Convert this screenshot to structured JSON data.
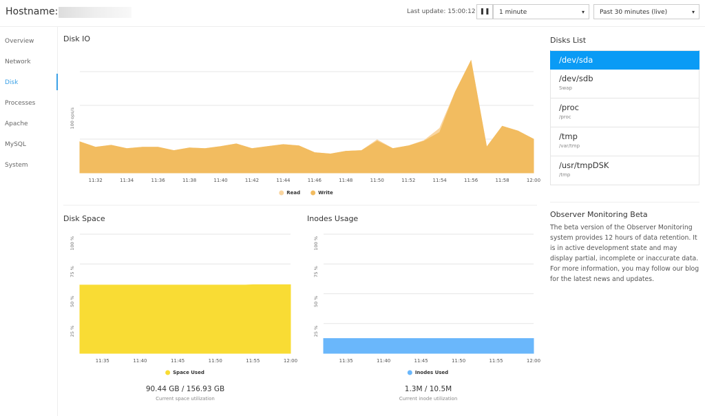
{
  "header": {
    "hostname_label": "Hostname:",
    "last_update": "Last update: 15:00:12",
    "interval": "1 minute",
    "range": "Past 30 minutes (live)"
  },
  "sidebar": {
    "items": [
      "Overview",
      "Network",
      "Disk",
      "Processes",
      "Apache",
      "MySQL",
      "System"
    ],
    "active": 2
  },
  "chart_data": [
    {
      "type": "area",
      "title": "Disk IO",
      "x": [
        "11:31",
        "11:32",
        "11:33",
        "11:34",
        "11:35",
        "11:36",
        "11:37",
        "11:38",
        "11:39",
        "11:40",
        "11:41",
        "11:42",
        "11:43",
        "11:44",
        "11:45",
        "11:46",
        "11:47",
        "11:48",
        "11:49",
        "11:50",
        "11:51",
        "11:52",
        "11:53",
        "11:54",
        "11:55",
        "11:56",
        "11:57",
        "11:58",
        "11:59",
        "12:00"
      ],
      "series": [
        {
          "name": "Read",
          "color": "#f9d5a0",
          "values": [
            46,
            38,
            41,
            36,
            38,
            38,
            33,
            37,
            36,
            39,
            43,
            36,
            39,
            42,
            40,
            30,
            28,
            32,
            33,
            49,
            36,
            40,
            48,
            66,
            120,
            166,
            38,
            69,
            62,
            50
          ]
        },
        {
          "name": "Write",
          "color": "#f2bc60",
          "values": [
            46,
            38,
            41,
            36,
            38,
            38,
            33,
            37,
            36,
            39,
            43,
            36,
            39,
            42,
            40,
            30,
            28,
            32,
            33,
            47,
            36,
            40,
            47,
            60,
            120,
            166,
            38,
            69,
            62,
            50
          ]
        }
      ],
      "xlim": [
        "11:31",
        "12:00"
      ],
      "xticks": [
        "11:32",
        "11:34",
        "11:36",
        "11:38",
        "11:40",
        "11:42",
        "11:44",
        "11:46",
        "11:48",
        "11:50",
        "11:52",
        "11:54",
        "11:56",
        "11:58",
        "12:00"
      ],
      "ylim": [
        0,
        175
      ],
      "yticks": [
        {
          "value": 50,
          "label": null
        },
        {
          "value": 100,
          "label": "100 ops/s"
        },
        {
          "value": 150,
          "label": null
        }
      ],
      "grid": true
    },
    {
      "type": "area",
      "title": "Disk Space",
      "x": [
        "11:32",
        "11:33",
        "11:34",
        "11:35",
        "11:36",
        "11:37",
        "11:38",
        "11:39",
        "11:40",
        "11:41",
        "11:42",
        "11:43",
        "11:44",
        "11:45",
        "11:46",
        "11:47",
        "11:48",
        "11:49",
        "11:50",
        "11:51",
        "11:52",
        "11:53",
        "11:54",
        "11:55",
        "11:56",
        "11:57",
        "11:58",
        "11:59",
        "12:00"
      ],
      "series": [
        {
          "name": "Space Used",
          "color": "#f9dc34",
          "values": [
            57.3,
            57.3,
            57.3,
            57.3,
            57.3,
            57.3,
            57.3,
            57.3,
            57.3,
            57.3,
            57.3,
            57.3,
            57.3,
            57.3,
            57.3,
            57.3,
            57.3,
            57.3,
            57.3,
            57.3,
            57.3,
            57.3,
            57.3,
            57.6,
            57.6,
            57.6,
            57.6,
            57.6,
            57.6
          ]
        }
      ],
      "xlim": [
        "11:32",
        "12:00"
      ],
      "xticks": [
        "11:35",
        "11:40",
        "11:45",
        "11:50",
        "11:55",
        "12:00"
      ],
      "ylim": [
        0,
        100
      ],
      "yticks": [
        {
          "value": 25,
          "label": "25 %"
        },
        {
          "value": 50,
          "label": "50 %"
        },
        {
          "value": 75,
          "label": "75 %"
        },
        {
          "value": 100,
          "label": "100 %"
        }
      ],
      "grid": true,
      "summary": "90.44 GB / 156.93 GB",
      "summary_caption": "Current space utilization"
    },
    {
      "type": "area",
      "title": "Inodes Usage",
      "x": [
        "11:32",
        "11:33",
        "11:34",
        "11:35",
        "11:36",
        "11:37",
        "11:38",
        "11:39",
        "11:40",
        "11:41",
        "11:42",
        "11:43",
        "11:44",
        "11:45",
        "11:46",
        "11:47",
        "11:48",
        "11:49",
        "11:50",
        "11:51",
        "11:52",
        "11:53",
        "11:54",
        "11:55",
        "11:56",
        "11:57",
        "11:58",
        "11:59",
        "12:00"
      ],
      "series": [
        {
          "name": "Inodes Used",
          "color": "#6ab7fb",
          "values": [
            12.4,
            12.4,
            12.4,
            12.4,
            12.4,
            12.4,
            12.4,
            12.4,
            12.4,
            12.4,
            12.4,
            12.4,
            12.4,
            12.4,
            12.4,
            12.4,
            12.4,
            12.4,
            12.4,
            12.4,
            12.4,
            12.4,
            12.4,
            12.4,
            12.4,
            12.4,
            12.4,
            12.4,
            12.4
          ]
        }
      ],
      "xlim": [
        "11:32",
        "12:00"
      ],
      "xticks": [
        "11:35",
        "11:40",
        "11:45",
        "11:50",
        "11:55",
        "12:00"
      ],
      "ylim": [
        0,
        100
      ],
      "yticks": [
        {
          "value": 25,
          "label": "25 %"
        },
        {
          "value": 50,
          "label": "50 %"
        },
        {
          "value": 75,
          "label": "75 %"
        },
        {
          "value": 100,
          "label": "100 %"
        }
      ],
      "grid": true,
      "summary": "1.3M / 10.5M",
      "summary_caption": "Current inode utilization"
    }
  ],
  "disks": {
    "title": "Disks List",
    "active": 0,
    "items": [
      {
        "name": "/dev/sda"
      },
      {
        "name": "/dev/sdb",
        "mount": "Swap"
      },
      {
        "name": "/proc",
        "mount": "/proc"
      },
      {
        "name": "/tmp",
        "mount": "/var/tmp"
      },
      {
        "name": "/usr/tmpDSK",
        "mount": "/tmp"
      }
    ]
  },
  "info": {
    "title": "Observer Monitoring Beta",
    "text": "The beta version of the Observer Monitoring system provides 12 hours of data retention. It is in active development state and may display partial, incomplete or inaccurate data. For more information, you may follow our blog for the latest news and updates."
  }
}
